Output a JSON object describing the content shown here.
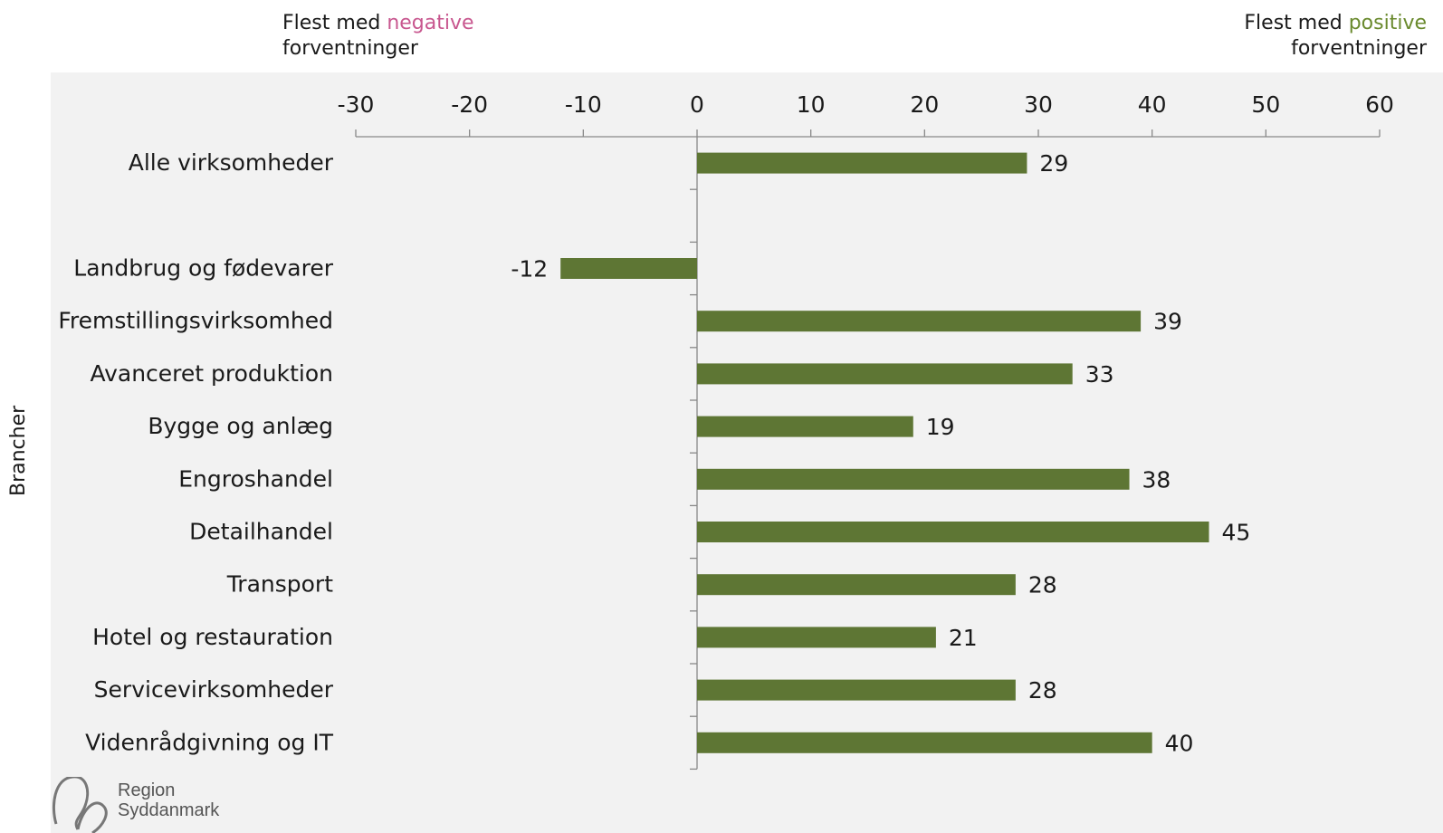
{
  "header": {
    "negative_prefix": "Flest med ",
    "negative_word": "negative",
    "negative_suffix": "forventninger",
    "positive_prefix": "Flest med ",
    "positive_word": "positive",
    "positive_suffix": "forventninger"
  },
  "logo": {
    "line1": "Region",
    "line2": "Syddanmark"
  },
  "chart_data": {
    "type": "bar",
    "orientation": "horizontal",
    "ylabel": "Brancher",
    "xlim": [
      -30,
      60
    ],
    "xticks": [
      -30,
      -20,
      -10,
      0,
      10,
      20,
      30,
      40,
      50,
      60
    ],
    "x_axis_position": "top",
    "grid": false,
    "legend": "none",
    "bar_color": "#5e7634",
    "categories": [
      "Alle virksomheder",
      "",
      "Landbrug og fødevarer",
      "Fremstillingsvirksomhed",
      "Avanceret produktion",
      "Bygge og anlæg",
      "Engroshandel",
      "Detailhandel",
      "Transport",
      "Hotel og restauration",
      "Servicevirksomheder",
      "Videnrådgivning og IT"
    ],
    "values": [
      29,
      null,
      -12,
      39,
      33,
      19,
      38,
      45,
      28,
      21,
      28,
      40
    ]
  }
}
